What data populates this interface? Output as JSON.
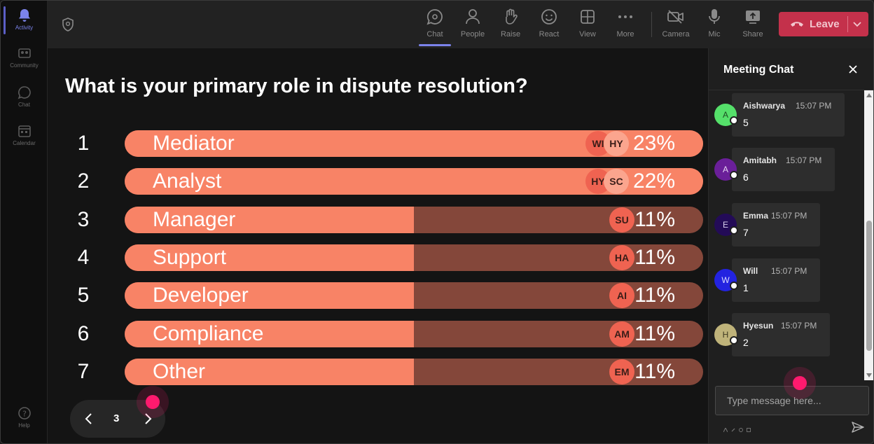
{
  "rail": {
    "items": [
      {
        "label": "Activity",
        "icon": "bell-icon"
      },
      {
        "label": "Community",
        "icon": "community-icon"
      },
      {
        "label": "Chat",
        "icon": "chat-icon"
      },
      {
        "label": "Calendar",
        "icon": "calendar-icon"
      }
    ],
    "help": {
      "label": "Help",
      "icon": "help-icon"
    }
  },
  "toolbar": {
    "buttons": [
      {
        "label": "Chat",
        "icon": "chat-icon",
        "active": true
      },
      {
        "label": "People",
        "icon": "people-icon"
      },
      {
        "label": "Raise",
        "icon": "raise-hand-icon"
      },
      {
        "label": "React",
        "icon": "react-icon"
      },
      {
        "label": "View",
        "icon": "view-grid-icon"
      },
      {
        "label": "More",
        "icon": "more-icon"
      },
      {
        "label": "Camera",
        "icon": "camera-off-icon"
      },
      {
        "label": "Mic",
        "icon": "mic-icon"
      },
      {
        "label": "Share",
        "icon": "share-icon"
      }
    ],
    "leave_label": "Leave"
  },
  "poll": {
    "question": "What is your primary role in dispute resolution?",
    "options": [
      {
        "num": "1",
        "label": "Mediator",
        "percent": "23%",
        "fill": 1.0,
        "voters": [
          "WI",
          "HY"
        ]
      },
      {
        "num": "2",
        "label": "Analyst",
        "percent": "22%",
        "fill": 1.0,
        "voters": [
          "HY",
          "SC"
        ]
      },
      {
        "num": "3",
        "label": "Manager",
        "percent": "11%",
        "fill": 0.5,
        "voters": [
          "SU"
        ]
      },
      {
        "num": "4",
        "label": "Support",
        "percent": "11%",
        "fill": 0.5,
        "voters": [
          "HA"
        ]
      },
      {
        "num": "5",
        "label": "Developer",
        "percent": "11%",
        "fill": 0.5,
        "voters": [
          "AI"
        ]
      },
      {
        "num": "6",
        "label": "Compliance",
        "percent": "11%",
        "fill": 0.5,
        "voters": [
          "AM"
        ]
      },
      {
        "num": "7",
        "label": "Other",
        "percent": "11%",
        "fill": 0.5,
        "voters": [
          "EM"
        ]
      }
    ],
    "page": "3"
  },
  "chat": {
    "title": "Meeting Chat",
    "messages": [
      {
        "initial": "A",
        "name": "Aishwarya",
        "time": "15:07 PM",
        "text": "5",
        "avatar_color": "#55e06a",
        "initial_color": "#1d4d23"
      },
      {
        "initial": "A",
        "name": "Amitabh",
        "time": "15:07 PM",
        "text": "6",
        "avatar_color": "#6a1f99",
        "initial_color": "#e6d3f2"
      },
      {
        "initial": "E",
        "name": "Emma",
        "time": "15:07 PM",
        "text": "7",
        "avatar_color": "#230b57",
        "initial_color": "#d8d0ee"
      },
      {
        "initial": "W",
        "name": "Will",
        "time": "15:07 PM",
        "text": "1",
        "avatar_color": "#2323e0",
        "initial_color": "#dcdcff"
      },
      {
        "initial": "H",
        "name": "Hyesun",
        "time": "15:07 PM",
        "text": "2",
        "avatar_color": "#bfb37a",
        "initial_color": "#3d3820"
      }
    ],
    "input_placeholder": "Type message here..."
  },
  "colors": {
    "bar_fill": "#f88366",
    "bar_track": "#84473a",
    "leave": "#c4314b",
    "accent": "#7b83eb",
    "cursor": "#ff1a6e"
  }
}
